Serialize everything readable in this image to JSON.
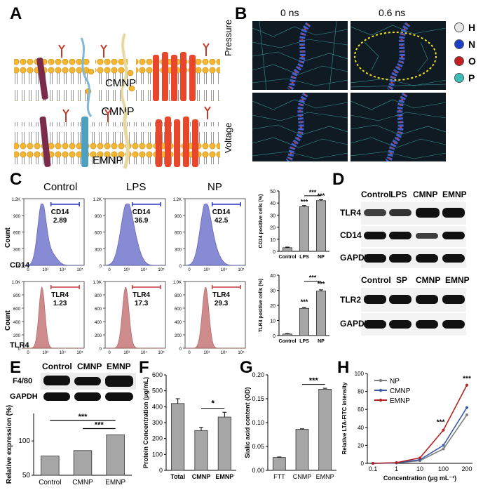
{
  "panels": {
    "A": "A",
    "B": "B",
    "C": "C",
    "D": "D",
    "E": "E",
    "F": "F",
    "G": "G",
    "H": "H"
  },
  "panelA": {
    "top_label": "CMNP",
    "bottom_label": "EMNP"
  },
  "panelB": {
    "times": [
      "0 ns",
      "0.6 ns"
    ],
    "rows": [
      "Pressure",
      "Voltage"
    ],
    "legend": [
      {
        "sym": "H",
        "color": "#e8e8e8"
      },
      {
        "sym": "N",
        "color": "#1d3fc6"
      },
      {
        "sym": "O",
        "color": "#c21f1f"
      },
      {
        "sym": "P",
        "color": "#3dbdb8"
      }
    ]
  },
  "panelC": {
    "columns": [
      "Control",
      "LPS",
      "NP"
    ],
    "row1": {
      "marker": "CD14",
      "gates": [
        {
          "name": "CD14",
          "value": "2.89"
        },
        {
          "name": "CD14",
          "value": "36.9"
        },
        {
          "name": "CD14",
          "value": "42.5"
        }
      ],
      "yticks": [
        "1.2K",
        "900",
        "600",
        "300",
        "0"
      ],
      "ylabel": "Count",
      "color": "#7b7fd0"
    },
    "row2": {
      "marker": "TLR4",
      "gates": [
        {
          "name": "TLR4",
          "value": "1.23"
        },
        {
          "name": "TLR4",
          "value": "17.3"
        },
        {
          "name": "TLR4",
          "value": "29.3"
        }
      ],
      "yticks": [
        "1.0K",
        "800",
        "600",
        "400",
        "200",
        "0"
      ],
      "ylabel": "Count",
      "color": "#c97f7f"
    },
    "xticks": [
      "0",
      "10³",
      "10⁴",
      "10⁵"
    ]
  },
  "panelD": {
    "top_lanes": [
      "Control",
      "LPS",
      "CMNP",
      "EMNP"
    ],
    "top_bands": [
      "TLR4",
      "CD14",
      "GAPDH"
    ],
    "bottom_lanes": [
      "Control",
      "SP",
      "CMNP",
      "EMNP"
    ],
    "bottom_bands": [
      "TLR2",
      "GAPDH"
    ]
  },
  "panelE": {
    "lanes": [
      "Control",
      "CMNP",
      "EMNP"
    ],
    "bands": [
      "F4/80",
      "GAPDH"
    ],
    "ylabel": "Relative expression (%)",
    "sig": [
      "***",
      "***"
    ]
  },
  "panelF": {
    "ylabel": "Protein Concentration (μg/mL)",
    "sig": "*"
  },
  "panelG": {
    "ylabel": "Sialic acid content (OD)",
    "sig": "***"
  },
  "panelH": {
    "ylabel": "Relative LTA-FITC intensity",
    "xlabel": "Concentration (μg mL⁻¹)",
    "sig": [
      "***",
      "***"
    ]
  },
  "chart_data": [
    {
      "id": "C-CD14-bar",
      "type": "bar",
      "categories": [
        "Control",
        "LPS",
        "NP"
      ],
      "values": [
        3,
        37,
        42
      ],
      "ylabel": "CD14 positive cells (%)",
      "ylim": [
        0,
        50
      ],
      "yticks": [
        0,
        10,
        20,
        30,
        40,
        50
      ],
      "sig": [
        "***",
        "***",
        "***"
      ]
    },
    {
      "id": "C-TLR4-bar",
      "type": "bar",
      "categories": [
        "Control",
        "LPS",
        "NP"
      ],
      "values": [
        1,
        18,
        29.5
      ],
      "ylabel": "TLR4 positive cells (%)",
      "ylim": [
        0,
        40
      ],
      "yticks": [
        0,
        10,
        20,
        30,
        40
      ],
      "sig": [
        "***",
        "***",
        "***"
      ]
    },
    {
      "id": "E-bar",
      "type": "bar",
      "categories": [
        "Control",
        "CMNP",
        "EMNP"
      ],
      "values": [
        78,
        86,
        109
      ],
      "ylabel": "Relative expression (%)",
      "ylim": [
        50,
        140
      ],
      "yticks": [
        50,
        100
      ],
      "sig": [
        "***",
        "***"
      ]
    },
    {
      "id": "F-bar",
      "type": "bar",
      "categories": [
        "Total",
        "CMNP",
        "EMNP"
      ],
      "values": [
        420,
        250,
        335
      ],
      "ylabel": "Protein Concentration (μg/mL)",
      "ylim": [
        0,
        600
      ],
      "yticks": [
        0,
        100,
        200,
        300,
        400,
        500,
        600
      ],
      "sig": [
        "*"
      ]
    },
    {
      "id": "G-bar",
      "type": "bar",
      "categories": [
        "FTT",
        "CNMP",
        "EMNP"
      ],
      "values": [
        0.027,
        0.086,
        0.17
      ],
      "ylabel": "Sialic acid content (OD)",
      "ylim": [
        0,
        0.2
      ],
      "yticks": [
        0.0,
        0.05,
        0.1,
        0.15,
        0.2
      ],
      "sig": [
        "***"
      ]
    },
    {
      "id": "H-line",
      "type": "line",
      "x": [
        "0.1",
        "1",
        "10",
        "100",
        "200"
      ],
      "series": [
        {
          "name": "NP",
          "color": "#7f7f7f",
          "values": [
            0,
            0.3,
            3,
            16,
            54
          ]
        },
        {
          "name": "CMNP",
          "color": "#3b5aa8",
          "values": [
            0,
            0.5,
            4,
            20,
            62
          ]
        },
        {
          "name": "EMNP",
          "color": "#b22222",
          "values": [
            0,
            0.8,
            6,
            37,
            87
          ]
        }
      ],
      "ylabel": "Relative LTA-FITC intensity",
      "xlabel": "Concentration (μg mL⁻¹)",
      "ylim": [
        0,
        100
      ],
      "yticks": [
        0,
        20,
        40,
        60,
        80,
        100
      ],
      "sig": [
        "***",
        "***"
      ]
    }
  ]
}
